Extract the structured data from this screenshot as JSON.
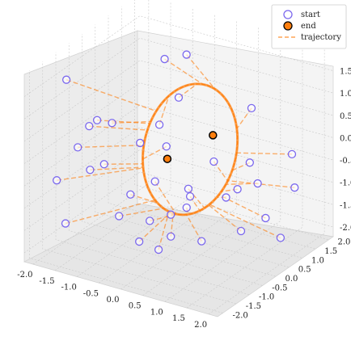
{
  "chart_data": {
    "type": "scatter",
    "projection": "3d",
    "title": "",
    "xlabel": "",
    "ylabel": "",
    "zlabel": "",
    "xlim": [
      -2.2,
      2.2
    ],
    "ylim": [
      -2.2,
      2.2
    ],
    "zlim": [
      -2.2,
      2.0
    ],
    "x_ticks": [
      "-2.0",
      "-1.5",
      "-1.0",
      "-0.5",
      "0.0",
      "0.5",
      "1.0",
      "1.5",
      "2.0"
    ],
    "y_ticks": [
      "-2.0",
      "-1.5",
      "-1.0",
      "-0.5",
      "0.0",
      "0.5",
      "1.0",
      "1.5",
      "2.0"
    ],
    "z_ticks": [
      "-2.0",
      "-1.5",
      "-1.0",
      "-0.5",
      "0.0",
      "0.5",
      "1.0",
      "1.5"
    ],
    "grid": true,
    "legend_position": "top-right",
    "colors": {
      "start": "#7b68ee",
      "end_fill": "#ff7f0e",
      "end_edge": "#000000",
      "trajectory": "#ff7f0e",
      "pane": "#f2f2f2",
      "grid": "#c8c8c8"
    },
    "series": [
      {
        "name": "start",
        "marker": "hollow-circle",
        "points": [
          [
            -1.6,
            -1.6,
            1.8
          ],
          [
            -0.8,
            0.8,
            1.5
          ],
          [
            -0.6,
            1.3,
            1.45
          ],
          [
            -0.3,
            0.5,
            0.9
          ],
          [
            0.4,
            2.1,
            0.2
          ],
          [
            1.5,
            1.8,
            -0.4
          ],
          [
            1.8,
            1.4,
            -0.9
          ],
          [
            -1.5,
            -0.9,
            0.5
          ],
          [
            -1.1,
            -0.7,
            0.6
          ],
          [
            -0.5,
            0.1,
            0.4
          ],
          [
            -1.4,
            -1.5,
            0.3
          ],
          [
            -1.3,
            -1.2,
            -0.3
          ],
          [
            -1.1,
            -1.0,
            -0.2
          ],
          [
            -1.2,
            -1.1,
            0.8
          ],
          [
            -0.7,
            -0.3,
            0.1
          ],
          [
            -0.4,
            0.2,
            -0.1
          ],
          [
            0.2,
            1.0,
            -0.6
          ],
          [
            0.6,
            1.7,
            -0.8
          ],
          [
            0.9,
            1.5,
            -1.1
          ],
          [
            0.3,
            1.3,
            -1.5
          ],
          [
            0.5,
            1.4,
            -1.3
          ],
          [
            -0.2,
            0.7,
            -1.2
          ],
          [
            -0.6,
            0.1,
            -0.9
          ],
          [
            -1.0,
            -0.6,
            -1.5
          ],
          [
            -0.8,
            -0.5,
            -1.0
          ],
          [
            -1.7,
            -1.8,
            -0.4
          ],
          [
            -1.8,
            -1.3,
            -1.6
          ],
          [
            -0.6,
            -0.1,
            -1.7
          ],
          [
            -0.3,
            0.2,
            -1.6
          ],
          [
            -0.1,
            0.6,
            -1.3
          ],
          [
            0.0,
            0.3,
            -1.4
          ],
          [
            0.9,
            1.8,
            -2.0
          ],
          [
            -0.6,
            -0.5,
            -2.0
          ],
          [
            0.7,
            1.2,
            -2.1
          ],
          [
            0.4,
            0.2,
            -2.0
          ],
          [
            -0.1,
            -0.6,
            -2.0
          ],
          [
            1.6,
            1.2,
            -2.0
          ],
          [
            0.0,
            -0.3,
            -1.8
          ]
        ]
      },
      {
        "name": "end",
        "marker": "filled-circle",
        "points": [
          [
            -0.2,
            -0.1,
            -0.2
          ],
          [
            0.3,
            0.8,
            0.1
          ]
        ]
      },
      {
        "name": "trajectory",
        "style": "dashed",
        "description_of_shape": "attractor ring"
      }
    ]
  }
}
